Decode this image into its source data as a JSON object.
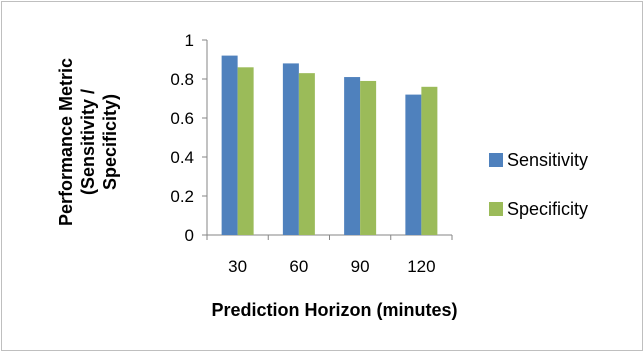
{
  "chart_data": {
    "type": "bar",
    "categories": [
      "30",
      "60",
      "90",
      "120"
    ],
    "series": [
      {
        "name": "Sensitivity",
        "values": [
          0.92,
          0.88,
          0.81,
          0.72
        ],
        "color": "#4f81bd"
      },
      {
        "name": "Specificity",
        "values": [
          0.86,
          0.83,
          0.79,
          0.76
        ],
        "color": "#9bbb59"
      }
    ],
    "title": "",
    "xlabel": "Prediction Horizon (minutes)",
    "ylabel_lines": [
      "Performance Metric",
      "(Sensitivity /",
      "Specificity)"
    ],
    "ylim": [
      0,
      1
    ],
    "yticks": [
      "0",
      "0.2",
      "0.4",
      "0.6",
      "0.8",
      "1"
    ],
    "grid": false,
    "legend_position": "right"
  }
}
